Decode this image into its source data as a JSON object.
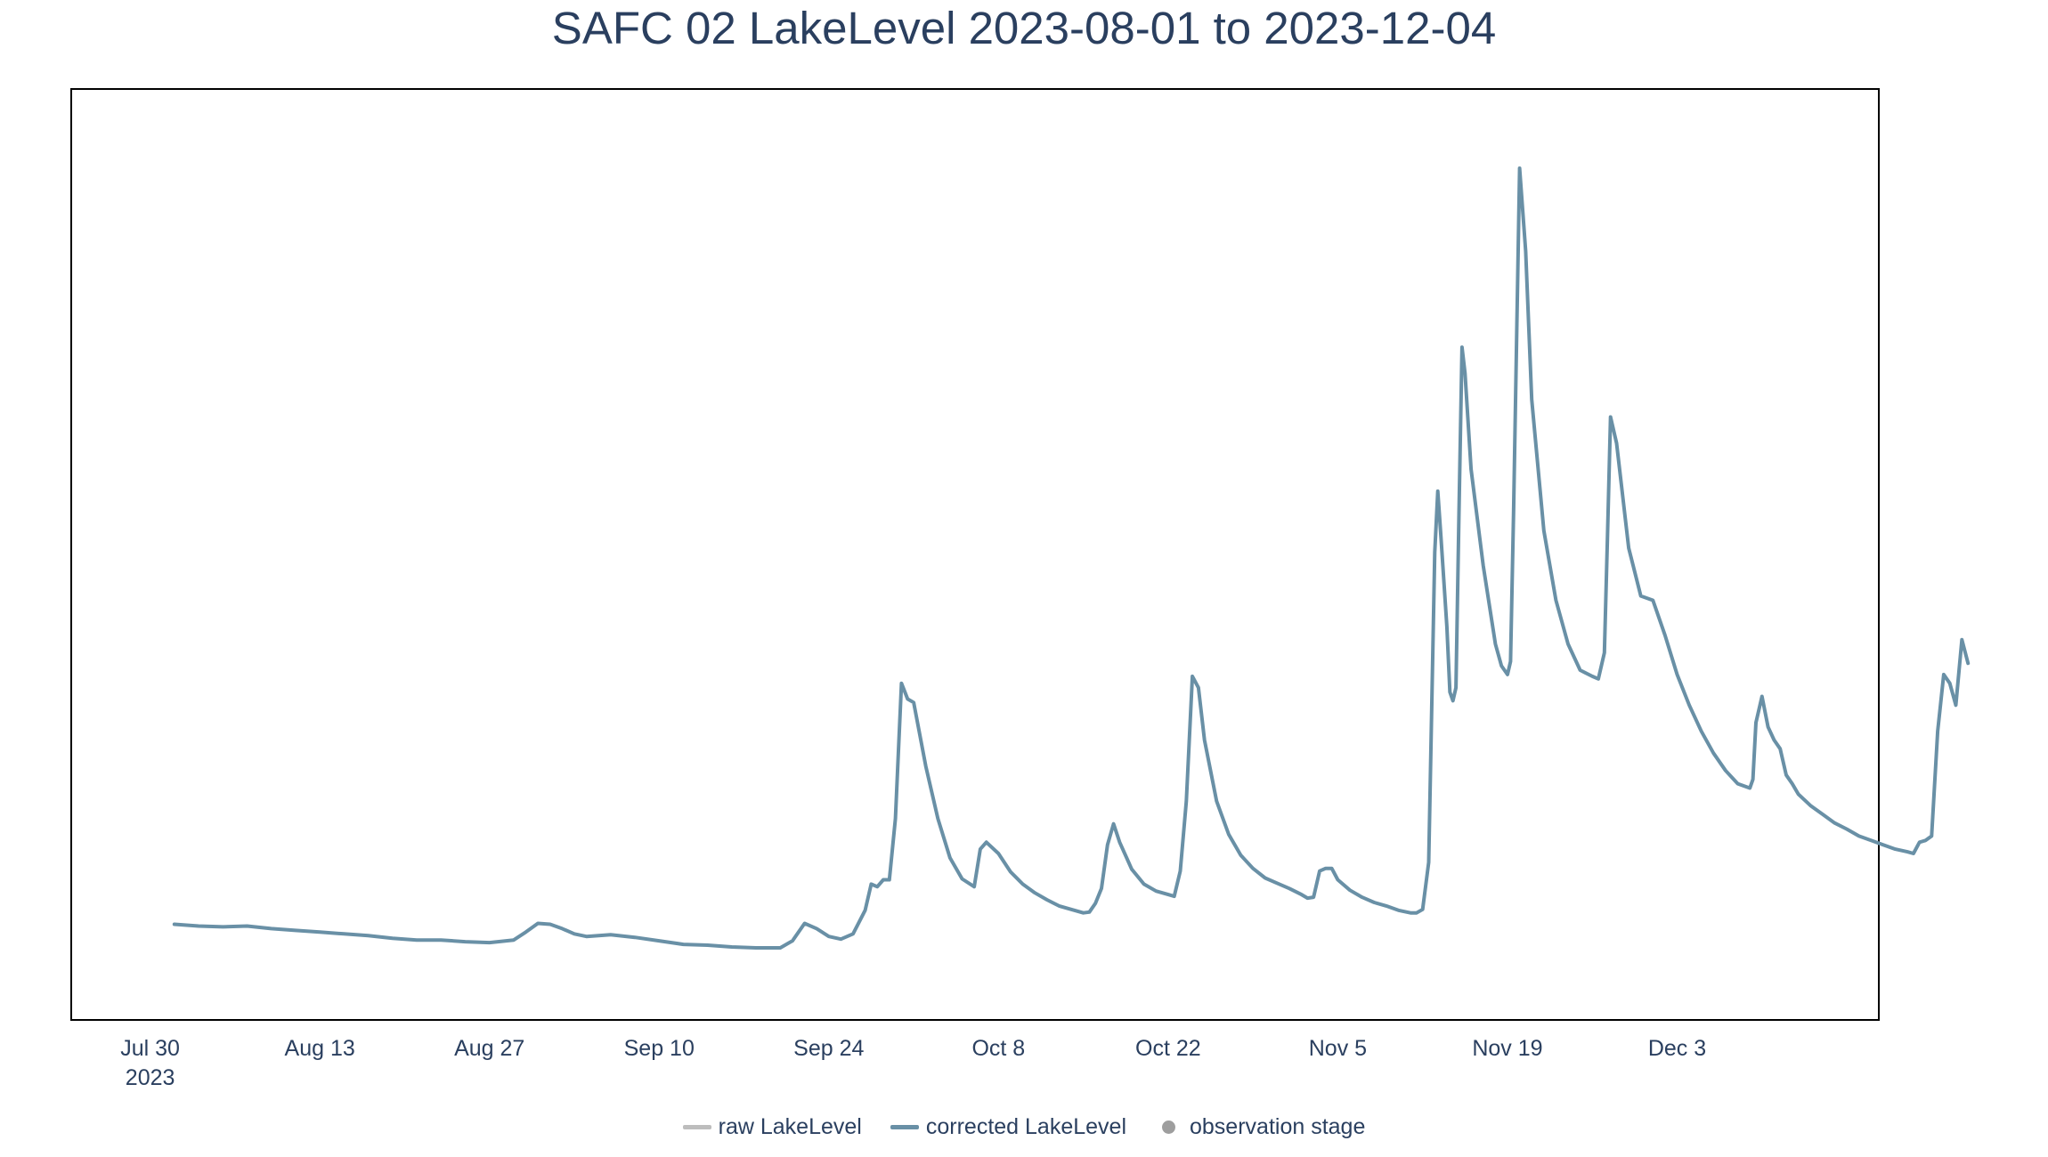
{
  "chart_data": {
    "type": "line",
    "title": "SAFC 02 LakeLevel 2023-08-01 to 2023-12-04",
    "xlabel": "",
    "ylabel": "",
    "x_range": [
      "2023-07-29",
      "2023-12-12"
    ],
    "y_range": [
      0,
      100
    ],
    "y_axis_labels_shown": false,
    "grid": false,
    "legend_position": "bottom-center",
    "x_ticks": [
      {
        "date": "2023-07-30",
        "label": "Jul 30",
        "sublabel": "2023"
      },
      {
        "date": "2023-08-13",
        "label": "Aug 13"
      },
      {
        "date": "2023-08-27",
        "label": "Aug 27"
      },
      {
        "date": "2023-09-10",
        "label": "Sep 10"
      },
      {
        "date": "2023-09-24",
        "label": "Sep 24"
      },
      {
        "date": "2023-10-08",
        "label": "Oct 8"
      },
      {
        "date": "2023-10-22",
        "label": "Oct 22"
      },
      {
        "date": "2023-11-05",
        "label": "Nov 5"
      },
      {
        "date": "2023-11-19",
        "label": "Nov 19"
      },
      {
        "date": "2023-12-03",
        "label": "Dec 3"
      }
    ],
    "legend": [
      {
        "name": "raw LakeLevel",
        "symbol": "line",
        "color": "#bdbdbd"
      },
      {
        "name": "corrected LakeLevel",
        "symbol": "line",
        "color": "#6990a6"
      },
      {
        "name": "observation stage",
        "symbol": "dot",
        "color": "#9e9e9e"
      }
    ],
    "series": [
      {
        "name": "corrected LakeLevel",
        "color": "#6990a6",
        "points": [
          [
            "2023-08-01",
            7.9
          ],
          [
            "2023-08-03",
            7.7
          ],
          [
            "2023-08-05",
            7.6
          ],
          [
            "2023-08-07",
            7.7
          ],
          [
            "2023-08-09",
            7.4
          ],
          [
            "2023-08-11",
            7.2
          ],
          [
            "2023-08-13",
            7.0
          ],
          [
            "2023-08-15",
            6.8
          ],
          [
            "2023-08-17",
            6.6
          ],
          [
            "2023-08-19",
            6.3
          ],
          [
            "2023-08-21",
            6.1
          ],
          [
            "2023-08-23",
            6.1
          ],
          [
            "2023-08-25",
            5.9
          ],
          [
            "2023-08-27",
            5.8
          ],
          [
            "2023-08-29",
            6.1
          ],
          [
            "2023-08-30",
            7.0
          ],
          [
            "2023-08-31",
            8.0
          ],
          [
            "2023-09-01",
            7.9
          ],
          [
            "2023-09-02",
            7.4
          ],
          [
            "2023-09-03",
            6.8
          ],
          [
            "2023-09-04",
            6.5
          ],
          [
            "2023-09-06",
            6.7
          ],
          [
            "2023-09-08",
            6.4
          ],
          [
            "2023-09-10",
            6.0
          ],
          [
            "2023-09-12",
            5.6
          ],
          [
            "2023-09-14",
            5.5
          ],
          [
            "2023-09-16",
            5.3
          ],
          [
            "2023-09-18",
            5.2
          ],
          [
            "2023-09-20",
            5.2
          ],
          [
            "2023-09-21",
            6.0
          ],
          [
            "2023-09-22",
            8.0
          ],
          [
            "2023-09-23",
            7.4
          ],
          [
            "2023-09-24",
            6.5
          ],
          [
            "2023-09-25",
            6.2
          ],
          [
            "2023-09-26",
            6.8
          ],
          [
            "2023-09-27",
            9.5
          ],
          [
            "2023-09-27T12",
            12.5
          ],
          [
            "2023-09-28",
            12.2
          ],
          [
            "2023-09-28T12",
            13.0
          ],
          [
            "2023-09-29",
            13.0
          ],
          [
            "2023-09-29T12",
            20.0
          ],
          [
            "2023-09-30",
            35.5
          ],
          [
            "2023-09-30T12",
            33.7
          ],
          [
            "2023-10-01",
            33.3
          ],
          [
            "2023-10-02",
            26.0
          ],
          [
            "2023-10-03",
            20.0
          ],
          [
            "2023-10-04",
            15.5
          ],
          [
            "2023-10-05",
            13.1
          ],
          [
            "2023-10-06",
            12.2
          ],
          [
            "2023-10-06T12",
            16.5
          ],
          [
            "2023-10-07",
            17.3
          ],
          [
            "2023-10-08",
            16.0
          ],
          [
            "2023-10-09",
            13.9
          ],
          [
            "2023-10-10",
            12.5
          ],
          [
            "2023-10-11",
            11.5
          ],
          [
            "2023-10-12",
            10.7
          ],
          [
            "2023-10-13",
            10.0
          ],
          [
            "2023-10-14",
            9.6
          ],
          [
            "2023-10-15",
            9.2
          ],
          [
            "2023-10-15T12",
            9.3
          ],
          [
            "2023-10-16",
            10.3
          ],
          [
            "2023-10-16T12",
            12.0
          ],
          [
            "2023-10-17",
            17.0
          ],
          [
            "2023-10-17T12",
            19.4
          ],
          [
            "2023-10-18",
            17.3
          ],
          [
            "2023-10-19",
            14.2
          ],
          [
            "2023-10-20",
            12.5
          ],
          [
            "2023-10-21",
            11.7
          ],
          [
            "2023-10-22",
            11.3
          ],
          [
            "2023-10-22T12",
            11.1
          ],
          [
            "2023-10-23",
            14.0
          ],
          [
            "2023-10-23T12",
            22.0
          ],
          [
            "2023-10-24",
            36.3
          ],
          [
            "2023-10-24T12",
            35.0
          ],
          [
            "2023-10-25",
            29.0
          ],
          [
            "2023-10-26",
            22.0
          ],
          [
            "2023-10-27",
            18.2
          ],
          [
            "2023-10-28",
            15.8
          ],
          [
            "2023-10-29",
            14.3
          ],
          [
            "2023-10-30",
            13.2
          ],
          [
            "2023-10-31",
            12.6
          ],
          [
            "2023-11-01",
            12.0
          ],
          [
            "2023-11-02",
            11.3
          ],
          [
            "2023-11-02T12",
            10.9
          ],
          [
            "2023-11-03",
            11.0
          ],
          [
            "2023-11-03T12",
            14.0
          ],
          [
            "2023-11-04",
            14.3
          ],
          [
            "2023-11-04T12",
            14.3
          ],
          [
            "2023-11-05",
            13.0
          ],
          [
            "2023-11-06",
            11.8
          ],
          [
            "2023-11-07",
            11.0
          ],
          [
            "2023-11-08",
            10.4
          ],
          [
            "2023-11-09",
            10.0
          ],
          [
            "2023-11-10",
            9.5
          ],
          [
            "2023-11-11",
            9.2
          ],
          [
            "2023-11-11T12",
            9.2
          ],
          [
            "2023-11-12",
            9.6
          ],
          [
            "2023-11-12T12",
            15.0
          ],
          [
            "2023-11-13",
            50.5
          ],
          [
            "2023-11-13T06",
            57.5
          ],
          [
            "2023-11-13T12",
            52.5
          ],
          [
            "2023-11-14",
            42.0
          ],
          [
            "2023-11-14T06",
            34.5
          ],
          [
            "2023-11-14T12",
            33.5
          ],
          [
            "2023-11-14T18",
            35.0
          ],
          [
            "2023-11-15",
            55.0
          ],
          [
            "2023-11-15T06",
            74.0
          ],
          [
            "2023-11-15T12",
            71.0
          ],
          [
            "2023-11-16",
            60.0
          ],
          [
            "2023-11-17",
            49.0
          ],
          [
            "2023-11-18",
            40.0
          ],
          [
            "2023-11-18T12",
            37.5
          ],
          [
            "2023-11-19",
            36.5
          ],
          [
            "2023-11-19T06",
            38.0
          ],
          [
            "2023-11-19T12",
            55.0
          ],
          [
            "2023-11-20",
            94.5
          ],
          [
            "2023-11-20T12",
            85.0
          ],
          [
            "2023-11-21",
            68.0
          ],
          [
            "2023-11-22",
            53.0
          ],
          [
            "2023-11-23",
            45.0
          ],
          [
            "2023-11-24",
            40.0
          ],
          [
            "2023-11-25",
            37.0
          ],
          [
            "2023-11-26",
            36.3
          ],
          [
            "2023-11-26T12",
            36.0
          ],
          [
            "2023-11-27",
            39.0
          ],
          [
            "2023-11-27T06",
            52.0
          ],
          [
            "2023-11-27T12",
            66.0
          ],
          [
            "2023-11-28",
            63.0
          ],
          [
            "2023-11-29",
            51.0
          ],
          [
            "2023-11-30",
            45.5
          ],
          [
            "2023-12-01",
            45.0
          ],
          [
            "2023-12-02",
            41.0
          ],
          [
            "2023-12-03",
            36.5
          ],
          [
            "2023-12-04",
            33.0
          ],
          [
            "2023-12-05",
            30.0
          ],
          [
            "2023-12-06",
            27.5
          ],
          [
            "2023-12-07",
            25.5
          ],
          [
            "2023-12-08",
            24.0
          ],
          [
            "2023-12-09",
            23.5
          ],
          [
            "2023-12-09T06",
            24.5
          ],
          [
            "2023-12-09T12",
            31.0
          ],
          [
            "2023-12-10",
            34.0
          ],
          [
            "2023-12-10T12",
            30.5
          ],
          [
            "2023-12-11",
            29.0
          ],
          [
            "2023-12-11T12",
            28.0
          ],
          [
            "2023-12-12",
            25.0
          ],
          [
            "2023-12-12T12",
            24.0
          ],
          [
            "2023-12-13",
            22.8
          ],
          [
            "2023-12-14",
            21.5
          ],
          [
            "2023-12-15",
            20.5
          ],
          [
            "2023-12-16",
            19.5
          ],
          [
            "2023-12-17",
            18.8
          ],
          [
            "2023-12-18",
            18.0
          ],
          [
            "2023-12-19",
            17.5
          ],
          [
            "2023-12-20",
            17.0
          ],
          [
            "2023-12-21",
            16.5
          ],
          [
            "2023-12-22",
            16.2
          ],
          [
            "2023-12-22T12",
            16.0
          ],
          [
            "2023-12-23",
            17.3
          ],
          [
            "2023-12-23T12",
            17.5
          ],
          [
            "2023-12-24",
            18.0
          ],
          [
            "2023-12-24T12",
            30.0
          ],
          [
            "2023-12-25",
            36.5
          ],
          [
            "2023-12-25T12",
            35.5
          ],
          [
            "2023-12-26",
            33.0
          ],
          [
            "2023-12-26T12",
            40.5
          ],
          [
            "2023-12-27",
            37.8
          ]
        ]
      }
    ]
  }
}
